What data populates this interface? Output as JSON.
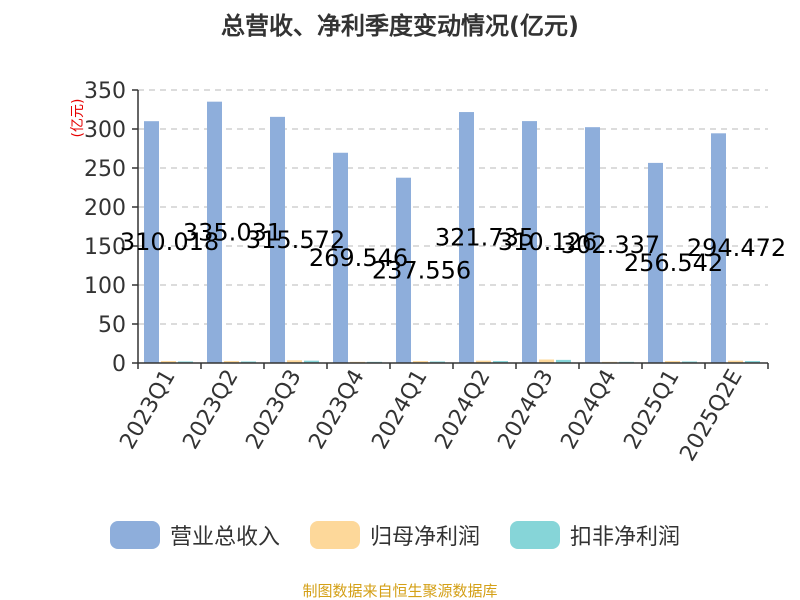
{
  "title": "总营收、净利季度变动情况(亿元)",
  "source": "制图数据来自恒生聚源数据库",
  "colors": {
    "revenue": "#8eaedb",
    "net_profit": "#fdd89a",
    "deducted_profit": "#86d5d8",
    "ylabel": "#e60000",
    "source": "#d4a017",
    "grid": "#c8c8c8",
    "axis": "#333333"
  },
  "chart_data": {
    "type": "bar",
    "title": "总营收、净利季度变动情况(亿元)",
    "ylabel": "(亿元)",
    "xlabel": "",
    "ylim": [
      0,
      350
    ],
    "yticks": [
      0,
      50,
      100,
      150,
      200,
      250,
      300,
      350
    ],
    "grid": true,
    "legend_position": "bottom",
    "categories": [
      "2023Q1",
      "2023Q2",
      "2023Q3",
      "2023Q4",
      "2024Q1",
      "2024Q2",
      "2024Q3",
      "2024Q4",
      "2025Q1",
      "2025Q2E"
    ],
    "series": [
      {
        "name": "营业总收入",
        "color": "#8eaedb",
        "values": [
          310.018,
          335.031,
          315.572,
          269.546,
          237.556,
          321.735,
          310.126,
          302.337,
          256.542,
          294.472
        ],
        "labels": [
          "310.018",
          "335.031",
          "315.572",
          "269.546",
          "237.556",
          "321.735",
          "310.126",
          "302.337",
          "256.542",
          "294.472"
        ]
      },
      {
        "name": "归母净利润",
        "color": "#fdd89a",
        "values": [
          2.5,
          2.5,
          3.5,
          1.5,
          2.5,
          3,
          4.5,
          1.5,
          2.5,
          3
        ]
      },
      {
        "name": "扣非净利润",
        "color": "#86d5d8",
        "values": [
          2,
          2,
          3,
          1.5,
          2,
          2.5,
          4,
          1.5,
          2,
          2.5
        ]
      }
    ]
  }
}
